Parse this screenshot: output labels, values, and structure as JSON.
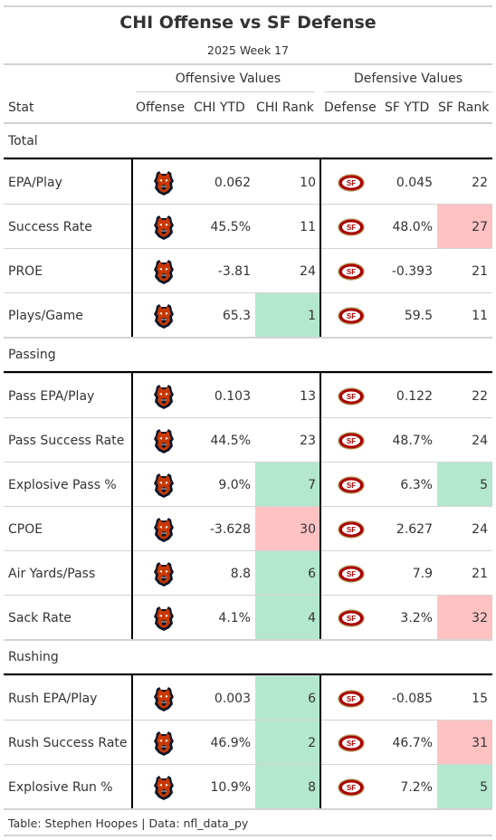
{
  "title": "CHI Offense vs SF Defense",
  "subtitle": "2025 Week 17",
  "spanners": {
    "offense": "Offensive Values",
    "defense": "Defensive Values"
  },
  "columns": {
    "stat": "Stat",
    "offense": "Offense",
    "off_ytd": "CHI YTD",
    "off_rank": "CHI Rank",
    "defense": "Defense",
    "def_ytd": "SF YTD",
    "def_rank": "SF Rank"
  },
  "logos": {
    "offense": "chicago-bears-logo",
    "defense": "sf-49ers-logo"
  },
  "colors": {
    "good": "#b3e8cf",
    "bad": "#ffc2c2",
    "bears_orange": "#c83803",
    "bears_navy": "#0b162a",
    "niners_red": "#aa0000",
    "niners_gold": "#b3995d"
  },
  "groups": [
    {
      "label": "Total",
      "rows": [
        {
          "stat": "EPA/Play",
          "off_ytd": "0.062",
          "off_rank": "10",
          "off_class": "",
          "def_ytd": "0.045",
          "def_rank": "22",
          "def_class": ""
        },
        {
          "stat": "Success Rate",
          "off_ytd": "45.5%",
          "off_rank": "11",
          "off_class": "",
          "def_ytd": "48.0%",
          "def_rank": "27",
          "def_class": "bad"
        },
        {
          "stat": "PROE",
          "off_ytd": "-3.81",
          "off_rank": "24",
          "off_class": "",
          "def_ytd": "-0.393",
          "def_rank": "21",
          "def_class": ""
        },
        {
          "stat": "Plays/Game",
          "off_ytd": "65.3",
          "off_rank": "1",
          "off_class": "good",
          "def_ytd": "59.5",
          "def_rank": "11",
          "def_class": ""
        }
      ]
    },
    {
      "label": "Passing",
      "rows": [
        {
          "stat": "Pass EPA/Play",
          "off_ytd": "0.103",
          "off_rank": "13",
          "off_class": "",
          "def_ytd": "0.122",
          "def_rank": "22",
          "def_class": ""
        },
        {
          "stat": "Pass Success Rate",
          "off_ytd": "44.5%",
          "off_rank": "23",
          "off_class": "",
          "def_ytd": "48.7%",
          "def_rank": "24",
          "def_class": ""
        },
        {
          "stat": "Explosive Pass %",
          "off_ytd": "9.0%",
          "off_rank": "7",
          "off_class": "good",
          "def_ytd": "6.3%",
          "def_rank": "5",
          "def_class": "good"
        },
        {
          "stat": "CPOE",
          "off_ytd": "-3.628",
          "off_rank": "30",
          "off_class": "bad",
          "def_ytd": "2.627",
          "def_rank": "24",
          "def_class": ""
        },
        {
          "stat": "Air Yards/Pass",
          "off_ytd": "8.8",
          "off_rank": "6",
          "off_class": "good",
          "def_ytd": "7.9",
          "def_rank": "21",
          "def_class": ""
        },
        {
          "stat": "Sack Rate",
          "off_ytd": "4.1%",
          "off_rank": "4",
          "off_class": "good",
          "def_ytd": "3.2%",
          "def_rank": "32",
          "def_class": "bad"
        }
      ]
    },
    {
      "label": "Rushing",
      "rows": [
        {
          "stat": "Rush EPA/Play",
          "off_ytd": "0.003",
          "off_rank": "6",
          "off_class": "good",
          "def_ytd": "-0.085",
          "def_rank": "15",
          "def_class": ""
        },
        {
          "stat": "Rush Success Rate",
          "off_ytd": "46.9%",
          "off_rank": "2",
          "off_class": "good",
          "def_ytd": "46.7%",
          "def_rank": "31",
          "def_class": "bad"
        },
        {
          "stat": "Explosive Run %",
          "off_ytd": "10.9%",
          "off_rank": "8",
          "off_class": "good",
          "def_ytd": "7.2%",
          "def_rank": "5",
          "def_class": "good"
        }
      ]
    }
  ],
  "source": "Table: Stephen Hoopes | Data: nfl_data_py"
}
